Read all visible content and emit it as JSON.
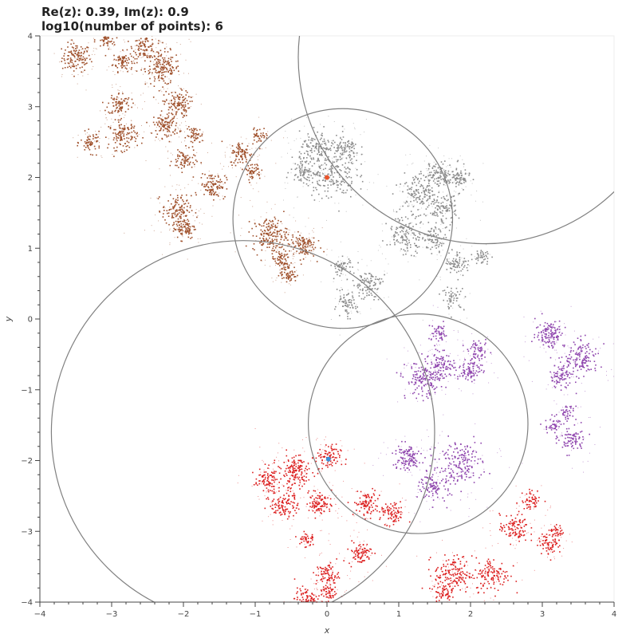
{
  "chart_data": {
    "type": "scatter",
    "title_lines": [
      "Re(z): 0.39, Im(z): 0.9",
      "log10(number of points): 6"
    ],
    "xlabel": "x",
    "ylabel": "y",
    "xlim": [
      -4,
      4
    ],
    "ylim": [
      -4,
      4
    ],
    "x_ticks": [
      -4,
      -3,
      -2,
      -1,
      0,
      1,
      2,
      3,
      4
    ],
    "y_ticks": [
      -4,
      -3,
      -2,
      -1,
      0,
      1,
      2,
      3,
      4
    ],
    "x_tick_labels": [
      "−4",
      "−3",
      "−2",
      "−1",
      "0",
      "1",
      "2",
      "3",
      "4"
    ],
    "y_tick_labels": [
      "−4",
      "−3",
      "−2",
      "−1",
      "0",
      "1",
      "2",
      "3",
      "4"
    ],
    "grid": false,
    "circles": [
      {
        "cx": 2.2,
        "cy": 3.7,
        "r": 2.6,
        "color": "#808080"
      },
      {
        "cx": 0.22,
        "cy": 1.42,
        "r": 1.53,
        "color": "#808080"
      },
      {
        "cx": -1.17,
        "cy": -1.6,
        "r": 2.67,
        "color": "#808080"
      },
      {
        "cx": 1.27,
        "cy": -1.48,
        "r": 1.53,
        "color": "#808080"
      }
    ],
    "markers": [
      {
        "x": 0.0,
        "y": 2.0,
        "color": "#e8542b"
      },
      {
        "x": 0.02,
        "y": -1.98,
        "color": "#3a8fd8"
      }
    ],
    "series": [
      {
        "color": "#a0522d",
        "clusters": [
          [
            -3.5,
            3.7,
            0.1,
            120
          ],
          [
            -2.85,
            3.65,
            0.07,
            80
          ],
          [
            -2.3,
            3.55,
            0.12,
            160
          ],
          [
            -2.55,
            3.85,
            0.08,
            90
          ],
          [
            -3.1,
            3.95,
            0.07,
            60
          ],
          [
            -2.9,
            3.05,
            0.08,
            80
          ],
          [
            -2.1,
            3.05,
            0.09,
            110
          ],
          [
            -2.25,
            2.75,
            0.09,
            110
          ],
          [
            -1.85,
            2.6,
            0.06,
            50
          ],
          [
            -2.85,
            2.6,
            0.1,
            120
          ],
          [
            -3.3,
            2.5,
            0.07,
            60
          ],
          [
            -2.0,
            2.25,
            0.08,
            70
          ],
          [
            -1.6,
            1.9,
            0.09,
            100
          ],
          [
            -2.1,
            1.55,
            0.1,
            110
          ],
          [
            -2.0,
            1.3,
            0.08,
            90
          ],
          [
            -1.2,
            2.35,
            0.08,
            80
          ],
          [
            -1.05,
            2.1,
            0.06,
            50
          ],
          [
            -0.8,
            1.2,
            0.12,
            170
          ],
          [
            -0.35,
            1.05,
            0.09,
            110
          ],
          [
            -0.65,
            0.85,
            0.06,
            60
          ],
          [
            -0.55,
            0.65,
            0.06,
            60
          ],
          [
            -0.95,
            2.6,
            0.06,
            40
          ]
        ]
      },
      {
        "color": "#8c8c8c",
        "clusters": [
          [
            0.05,
            2.05,
            0.17,
            180
          ],
          [
            -0.15,
            2.4,
            0.12,
            120
          ],
          [
            0.25,
            2.4,
            0.1,
            90
          ],
          [
            -0.35,
            2.1,
            0.08,
            70
          ],
          [
            1.3,
            1.8,
            0.14,
            150
          ],
          [
            1.55,
            2.05,
            0.08,
            80
          ],
          [
            1.8,
            2.0,
            0.09,
            90
          ],
          [
            1.6,
            1.55,
            0.1,
            100
          ],
          [
            1.1,
            1.2,
            0.13,
            130
          ],
          [
            1.5,
            1.15,
            0.08,
            70
          ],
          [
            1.8,
            0.8,
            0.08,
            70
          ],
          [
            2.15,
            0.9,
            0.06,
            40
          ],
          [
            0.55,
            0.5,
            0.1,
            100
          ],
          [
            0.25,
            0.2,
            0.08,
            70
          ],
          [
            0.2,
            0.75,
            0.07,
            50
          ],
          [
            1.75,
            0.3,
            0.08,
            50
          ]
        ]
      },
      {
        "color": "#8e44ad",
        "clusters": [
          [
            3.1,
            -0.2,
            0.1,
            120
          ],
          [
            3.55,
            -0.55,
            0.12,
            130
          ],
          [
            3.25,
            -0.8,
            0.08,
            80
          ],
          [
            1.35,
            -0.85,
            0.13,
            150
          ],
          [
            1.6,
            -0.65,
            0.09,
            90
          ],
          [
            2.0,
            -0.7,
            0.08,
            80
          ],
          [
            2.1,
            -0.45,
            0.07,
            60
          ],
          [
            1.55,
            -0.2,
            0.07,
            50
          ],
          [
            1.85,
            -2.0,
            0.15,
            160
          ],
          [
            1.1,
            -1.95,
            0.1,
            110
          ],
          [
            1.5,
            -2.35,
            0.11,
            110
          ],
          [
            3.4,
            -1.7,
            0.09,
            80
          ],
          [
            3.15,
            -1.5,
            0.06,
            40
          ],
          [
            3.35,
            -1.3,
            0.06,
            40
          ]
        ]
      },
      {
        "color": "#dc1f1f",
        "clusters": [
          [
            -0.45,
            -2.15,
            0.12,
            150
          ],
          [
            -0.85,
            -2.25,
            0.08,
            80
          ],
          [
            -0.1,
            -2.6,
            0.08,
            90
          ],
          [
            -0.6,
            -2.6,
            0.1,
            110
          ],
          [
            0.55,
            -2.6,
            0.09,
            90
          ],
          [
            0.9,
            -2.75,
            0.08,
            80
          ],
          [
            0.0,
            -1.95,
            0.09,
            80
          ],
          [
            1.75,
            -3.6,
            0.13,
            150
          ],
          [
            2.3,
            -3.6,
            0.12,
            120
          ],
          [
            0.45,
            -3.3,
            0.08,
            80
          ],
          [
            0.0,
            -3.6,
            0.08,
            80
          ],
          [
            -0.3,
            -3.95,
            0.08,
            80
          ],
          [
            0.0,
            -3.85,
            0.06,
            50
          ],
          [
            2.6,
            -2.95,
            0.1,
            100
          ],
          [
            3.1,
            -3.15,
            0.08,
            70
          ],
          [
            2.85,
            -2.55,
            0.07,
            50
          ],
          [
            1.6,
            -3.85,
            0.06,
            50
          ],
          [
            -0.3,
            -3.1,
            0.06,
            40
          ],
          [
            3.2,
            -3.0,
            0.05,
            30
          ]
        ]
      }
    ]
  }
}
